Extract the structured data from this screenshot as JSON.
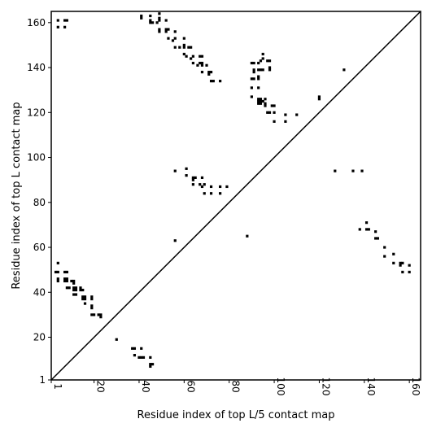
{
  "chart_data": {
    "type": "scatter",
    "title": "",
    "xlabel": "Residue index of top L/5 contact map",
    "ylabel": "Residue index of top L contact map",
    "xlim": [
      1,
      165
    ],
    "ylim": [
      1,
      165
    ],
    "x_ticks": [
      1,
      20,
      40,
      60,
      80,
      100,
      120,
      140,
      160
    ],
    "y_ticks": [
      1,
      20,
      40,
      60,
      80,
      100,
      120,
      140,
      160
    ],
    "grid": false,
    "legend": "none",
    "marker": "square",
    "colors": {
      "points": "#000000",
      "diagonal": "#000000",
      "axes": "#000000",
      "background": "#ffffff"
    },
    "diagonal": [
      [
        1,
        1
      ],
      [
        165,
        165
      ]
    ],
    "upper_points": [
      [
        4,
        161
      ],
      [
        7,
        161
      ],
      [
        8,
        161
      ],
      [
        4,
        158
      ],
      [
        7,
        158
      ],
      [
        41,
        163
      ],
      [
        41,
        162
      ],
      [
        45,
        163
      ],
      [
        45,
        161
      ],
      [
        45,
        160
      ],
      [
        46,
        160
      ],
      [
        48,
        160
      ],
      [
        49,
        161
      ],
      [
        49,
        162
      ],
      [
        49,
        164
      ],
      [
        49,
        157
      ],
      [
        49,
        156
      ],
      [
        52,
        157
      ],
      [
        52,
        156
      ],
      [
        53,
        157
      ],
      [
        53,
        153
      ],
      [
        55,
        152
      ],
      [
        56,
        153
      ],
      [
        56,
        156
      ],
      [
        52,
        161
      ],
      [
        60,
        153
      ],
      [
        56,
        149
      ],
      [
        58,
        149
      ],
      [
        60,
        149
      ],
      [
        60,
        150
      ],
      [
        62,
        149
      ],
      [
        63,
        149
      ],
      [
        60,
        146
      ],
      [
        61,
        145
      ],
      [
        63,
        144
      ],
      [
        64,
        145
      ],
      [
        64,
        142
      ],
      [
        67,
        145
      ],
      [
        68,
        145
      ],
      [
        67,
        142
      ],
      [
        68,
        141
      ],
      [
        68,
        142
      ],
      [
        66,
        141
      ],
      [
        70,
        141
      ],
      [
        71,
        138
      ],
      [
        72,
        138
      ],
      [
        71,
        137
      ],
      [
        68,
        138
      ],
      [
        72,
        134
      ],
      [
        73,
        134
      ],
      [
        76,
        134
      ],
      [
        90,
        142
      ],
      [
        91,
        142
      ],
      [
        93,
        142
      ],
      [
        94,
        143
      ],
      [
        95,
        144
      ],
      [
        95,
        146
      ],
      [
        97,
        143
      ],
      [
        98,
        143
      ],
      [
        98,
        140
      ],
      [
        98,
        139
      ],
      [
        91,
        139
      ],
      [
        91,
        138
      ],
      [
        93,
        139
      ],
      [
        94,
        139
      ],
      [
        95,
        139
      ],
      [
        90,
        135
      ],
      [
        91,
        135
      ],
      [
        93,
        136
      ],
      [
        93,
        135
      ],
      [
        90,
        131
      ],
      [
        93,
        131
      ],
      [
        90,
        127
      ],
      [
        93,
        126
      ],
      [
        94,
        126
      ],
      [
        93,
        125
      ],
      [
        94,
        125
      ],
      [
        93,
        124
      ],
      [
        94,
        124
      ],
      [
        95,
        125
      ],
      [
        96,
        126
      ],
      [
        96,
        123
      ],
      [
        96,
        124
      ],
      [
        97,
        120
      ],
      [
        98,
        120
      ],
      [
        99,
        123
      ],
      [
        100,
        123
      ],
      [
        100,
        120
      ],
      [
        100,
        116
      ],
      [
        105,
        119
      ],
      [
        105,
        116
      ],
      [
        110,
        119
      ],
      [
        120,
        126
      ],
      [
        120,
        127
      ],
      [
        131,
        139
      ],
      [
        56,
        94
      ],
      [
        61,
        95
      ],
      [
        61,
        92
      ],
      [
        64,
        91
      ],
      [
        64,
        90
      ],
      [
        65,
        91
      ],
      [
        68,
        91
      ],
      [
        64,
        88
      ],
      [
        67,
        88
      ],
      [
        68,
        87
      ],
      [
        69,
        88
      ],
      [
        72,
        87
      ],
      [
        76,
        87
      ],
      [
        79,
        87
      ],
      [
        69,
        84
      ],
      [
        72,
        84
      ],
      [
        76,
        84
      ],
      [
        127,
        94
      ],
      [
        135,
        94
      ],
      [
        139,
        94
      ]
    ],
    "lower_points": [
      [
        56,
        63
      ],
      [
        88,
        65
      ],
      [
        141,
        71
      ],
      [
        138,
        68
      ],
      [
        141,
        68
      ],
      [
        142,
        68
      ],
      [
        145,
        67
      ],
      [
        145,
        64
      ],
      [
        146,
        64
      ],
      [
        149,
        60
      ],
      [
        149,
        56
      ],
      [
        153,
        57
      ],
      [
        153,
        53
      ],
      [
        156,
        53
      ],
      [
        157,
        53
      ],
      [
        156,
        52
      ],
      [
        160,
        52
      ],
      [
        157,
        49
      ],
      [
        160,
        49
      ],
      [
        4,
        53
      ],
      [
        3,
        49
      ],
      [
        4,
        49
      ],
      [
        4,
        46
      ],
      [
        4,
        45
      ],
      [
        7,
        49
      ],
      [
        8,
        49
      ],
      [
        7,
        46
      ],
      [
        7,
        45
      ],
      [
        8,
        46
      ],
      [
        8,
        45
      ],
      [
        8,
        42
      ],
      [
        9,
        42
      ],
      [
        10,
        45
      ],
      [
        11,
        45
      ],
      [
        11,
        44
      ],
      [
        11,
        42
      ],
      [
        12,
        42
      ],
      [
        11,
        41
      ],
      [
        12,
        41
      ],
      [
        11,
        39
      ],
      [
        12,
        39
      ],
      [
        14,
        42
      ],
      [
        14,
        41
      ],
      [
        15,
        41
      ],
      [
        15,
        38
      ],
      [
        16,
        38
      ],
      [
        15,
        37
      ],
      [
        16,
        37
      ],
      [
        16,
        35
      ],
      [
        19,
        38
      ],
      [
        19,
        37
      ],
      [
        19,
        34
      ],
      [
        19,
        33
      ],
      [
        19,
        30
      ],
      [
        20,
        30
      ],
      [
        22,
        30
      ],
      [
        23,
        30
      ],
      [
        23,
        29
      ],
      [
        30,
        19
      ],
      [
        37,
        15
      ],
      [
        38,
        15
      ],
      [
        41,
        15
      ],
      [
        38,
        12
      ],
      [
        40,
        11
      ],
      [
        41,
        11
      ],
      [
        42,
        11
      ],
      [
        45,
        11
      ],
      [
        45,
        8
      ],
      [
        46,
        8
      ],
      [
        45,
        7
      ]
    ]
  }
}
